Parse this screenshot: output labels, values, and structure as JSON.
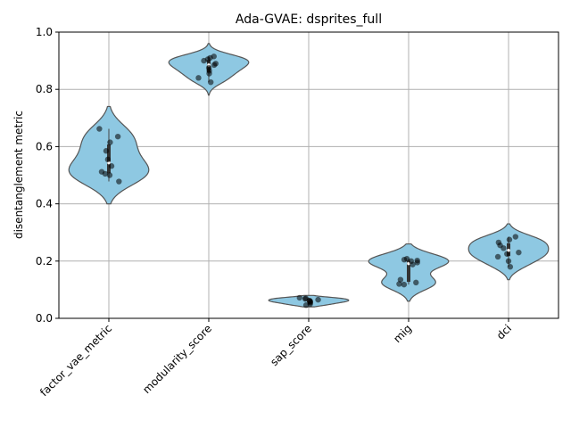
{
  "chart_data": {
    "type": "violin",
    "title": "Ada-GVAE: dsprites_full",
    "xlabel": "",
    "ylabel": "disentanglement metric",
    "ylim": [
      0.0,
      1.0
    ],
    "yticks": [
      "0.0",
      "0.2",
      "0.4",
      "0.6",
      "0.8",
      "1.0"
    ],
    "grid": true,
    "colors": {
      "violin_fill": "#8ec8e2",
      "violin_edge": "#555555",
      "point": "#000000",
      "grid": "#b0b0b0"
    },
    "categories": [
      "factor_vae_metric",
      "modularity_score",
      "sap_score",
      "mig",
      "dci"
    ],
    "series": [
      {
        "category": "factor_vae_metric",
        "range": [
          0.4,
          0.74
        ],
        "points": [
          0.635,
          0.662,
          0.615,
          0.585,
          0.555,
          0.532,
          0.512,
          0.505,
          0.5,
          0.478
        ]
      },
      {
        "category": "modularity_score",
        "range": [
          0.78,
          0.96
        ],
        "points": [
          0.915,
          0.91,
          0.905,
          0.9,
          0.89,
          0.885,
          0.875,
          0.865,
          0.855,
          0.84,
          0.825
        ]
      },
      {
        "category": "sap_score",
        "range": [
          0.04,
          0.08
        ],
        "points": [
          0.072,
          0.07,
          0.068,
          0.065,
          0.062,
          0.06,
          0.058,
          0.055,
          0.05,
          0.046
        ]
      },
      {
        "category": "mig",
        "range": [
          0.06,
          0.26
        ],
        "points": [
          0.208,
          0.205,
          0.202,
          0.2,
          0.195,
          0.188,
          0.135,
          0.125,
          0.12,
          0.118
        ]
      },
      {
        "category": "dci",
        "range": [
          0.135,
          0.33
        ],
        "points": [
          0.285,
          0.275,
          0.265,
          0.255,
          0.245,
          0.23,
          0.225,
          0.215,
          0.2,
          0.18
        ]
      }
    ]
  }
}
